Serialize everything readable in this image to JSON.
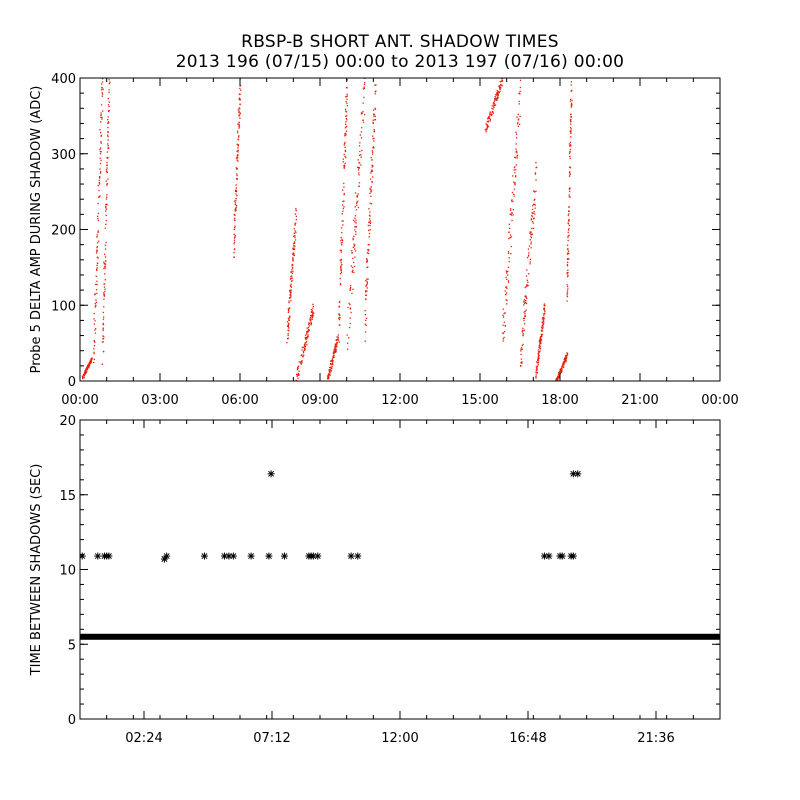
{
  "title": "RBSP-B SHORT ANT. SHADOW TIMES",
  "subtitle": "2013 196 (07/15) 00:00 to 2013 197 (07/16) 00:00",
  "colors": {
    "points": "#e8200c",
    "axis": "#000000",
    "background": "#ffffff"
  },
  "chart_data": [
    {
      "type": "scatter",
      "ylabel": "Probe 5 DELTA AMP DURING SHADOW (ADC)",
      "xlim": [
        "00:00",
        "24:00"
      ],
      "ylim": [
        0,
        400
      ],
      "xticks": [
        "00:00",
        "03:00",
        "06:00",
        "09:00",
        "12:00",
        "15:00",
        "18:00",
        "21:00",
        "00:00"
      ],
      "yticks": [
        "0",
        "100",
        "200",
        "300",
        "400"
      ],
      "marker": "dot",
      "color": "#e8200c",
      "clusters": [
        {
          "x_start": "00:05",
          "x_end": "00:25",
          "y_start": 5,
          "y_end": 30
        },
        {
          "x_start": "00:30",
          "x_end": "00:50",
          "y_start": 40,
          "y_end": 400
        },
        {
          "x_start": "00:50",
          "x_end": "01:05",
          "y_start": 50,
          "y_end": 400
        },
        {
          "x_start": "05:45",
          "x_end": "06:00",
          "y_start": 180,
          "y_end": 400
        },
        {
          "x_start": "07:45",
          "x_end": "08:05",
          "y_start": 60,
          "y_end": 220
        },
        {
          "x_start": "08:05",
          "x_end": "08:45",
          "y_start": 0,
          "y_end": 100
        },
        {
          "x_start": "09:15",
          "x_end": "09:40",
          "y_start": 0,
          "y_end": 60
        },
        {
          "x_start": "09:40",
          "x_end": "10:00",
          "y_start": 60,
          "y_end": 400
        },
        {
          "x_start": "10:00",
          "x_end": "10:40",
          "y_start": 50,
          "y_end": 400
        },
        {
          "x_start": "10:40",
          "x_end": "11:05",
          "y_start": 80,
          "y_end": 400
        },
        {
          "x_start": "15:10",
          "x_end": "15:50",
          "y_start": 330,
          "y_end": 400
        },
        {
          "x_start": "15:50",
          "x_end": "16:30",
          "y_start": 60,
          "y_end": 380
        },
        {
          "x_start": "16:30",
          "x_end": "17:05",
          "y_start": 30,
          "y_end": 270
        },
        {
          "x_start": "17:05",
          "x_end": "17:25",
          "y_start": 10,
          "y_end": 100
        },
        {
          "x_start": "17:50",
          "x_end": "18:15",
          "y_start": 0,
          "y_end": 35
        },
        {
          "x_start": "18:15",
          "x_end": "18:25",
          "y_start": 120,
          "y_end": 400
        }
      ]
    },
    {
      "type": "scatter",
      "ylabel": "TIME BETWEEN SHADOWS (SEC)",
      "xlim": [
        "00:00",
        "24:00"
      ],
      "ylim": [
        0,
        20
      ],
      "xticks": [
        "02:24",
        "07:12",
        "12:00",
        "16:48",
        "21:36"
      ],
      "yticks": [
        "0",
        "5",
        "10",
        "15",
        "20"
      ],
      "marker": "asterisk",
      "color": "#000000",
      "baseline": {
        "y": 5.5,
        "x_start": "00:00",
        "x_end": "24:00"
      },
      "points": [
        {
          "x": "00:05",
          "y": 10.9
        },
        {
          "x": "00:40",
          "y": 10.9
        },
        {
          "x": "00:55",
          "y": 10.9
        },
        {
          "x": "01:00",
          "y": 10.9
        },
        {
          "x": "01:05",
          "y": 10.9
        },
        {
          "x": "03:10",
          "y": 10.7
        },
        {
          "x": "03:15",
          "y": 10.9
        },
        {
          "x": "04:40",
          "y": 10.9
        },
        {
          "x": "05:25",
          "y": 10.9
        },
        {
          "x": "05:35",
          "y": 10.9
        },
        {
          "x": "05:45",
          "y": 10.9
        },
        {
          "x": "06:25",
          "y": 10.9
        },
        {
          "x": "07:05",
          "y": 10.9
        },
        {
          "x": "07:10",
          "y": 16.4
        },
        {
          "x": "07:40",
          "y": 10.9
        },
        {
          "x": "08:35",
          "y": 10.9
        },
        {
          "x": "08:40",
          "y": 10.9
        },
        {
          "x": "08:45",
          "y": 10.9
        },
        {
          "x": "08:55",
          "y": 10.9
        },
        {
          "x": "10:10",
          "y": 10.9
        },
        {
          "x": "10:25",
          "y": 10.9
        },
        {
          "x": "17:25",
          "y": 10.9
        },
        {
          "x": "17:35",
          "y": 10.9
        },
        {
          "x": "18:00",
          "y": 10.9
        },
        {
          "x": "18:05",
          "y": 10.9
        },
        {
          "x": "18:25",
          "y": 10.9
        },
        {
          "x": "18:30",
          "y": 10.9
        },
        {
          "x": "18:30",
          "y": 16.4
        },
        {
          "x": "18:40",
          "y": 16.4
        }
      ]
    }
  ]
}
